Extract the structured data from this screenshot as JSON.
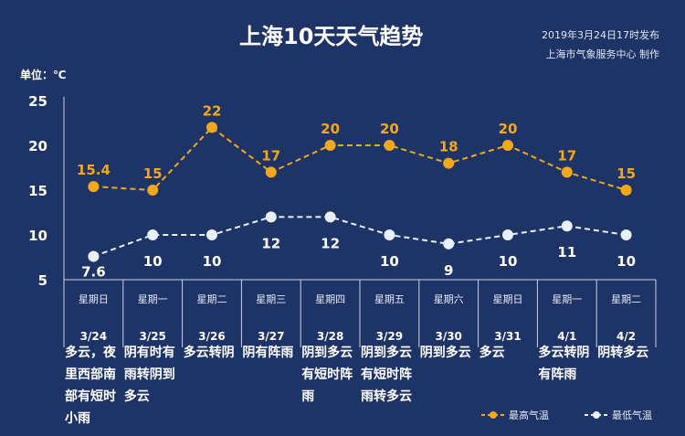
{
  "header": {
    "title": "上海10天天气趋势",
    "published": "2019年3月24日17时发布",
    "producer": "上海市气象服务中心  制作",
    "unit": "单位：℃"
  },
  "chart_data": {
    "type": "line",
    "title": "上海10天天气趋势",
    "ylabel": "单位：℃",
    "ylim": [
      5,
      25
    ],
    "yticks": [
      "5",
      "10",
      "15",
      "20",
      "25"
    ],
    "categories": [
      "3/24",
      "3/25",
      "3/26",
      "3/27",
      "3/28",
      "3/29",
      "3/30",
      "3/31",
      "4/1",
      "4/2"
    ],
    "weekdays": [
      "星期日",
      "星期一",
      "星期二",
      "星期三",
      "星期四",
      "星期五",
      "星期六",
      "星期日",
      "星期一",
      "星期二"
    ],
    "weather": [
      "多云，夜里西部南部有短时小雨",
      "阴有时有雨转阴到多云",
      "多云转阴",
      "阴有阵雨",
      "阴到多云有短时阵雨",
      "阴到多云有短时阵雨转多云",
      "阴到多云",
      "多云",
      "多云转阴有阵雨",
      "阴转多云"
    ],
    "series": [
      {
        "name": "最高气温",
        "color": "#f2a81d",
        "values": [
          15.4,
          15,
          22,
          17,
          20,
          20,
          18,
          20,
          17,
          15
        ],
        "labels": [
          "15.4",
          "15",
          "22",
          "17",
          "20",
          "20",
          "18",
          "20",
          "17",
          "15"
        ]
      },
      {
        "name": "最低气温",
        "color": "#e8f0fb",
        "values": [
          7.6,
          10,
          10,
          12,
          12,
          10,
          9,
          10,
          11,
          10
        ],
        "labels": [
          "7.6",
          "10",
          "10",
          "12",
          "12",
          "10",
          "9",
          "10",
          "11",
          "10"
        ]
      }
    ],
    "legend": "bottom-right"
  }
}
